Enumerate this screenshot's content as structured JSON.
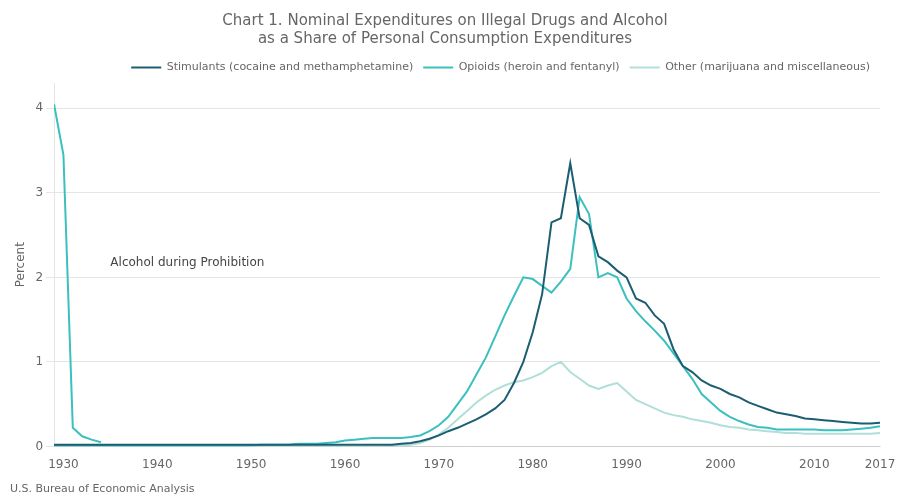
{
  "chart_data": {
    "type": "line",
    "title": "Chart 1. Nominal Expenditures on Illegal Drugs and Alcohol\nas a Share of Personal Consumption Expenditures",
    "ylabel": "Percent",
    "source": "U.S. Bureau of Economic Analysis",
    "xlim": [
      1929,
      2017
    ],
    "xticks": [
      1930,
      1940,
      1950,
      1960,
      1970,
      1980,
      1990,
      2000,
      2010,
      2017
    ],
    "ylim": [
      0,
      4.3
    ],
    "yticks": [
      0,
      1,
      2,
      3,
      4
    ],
    "grid": "y",
    "legend": "upper right",
    "annotations": [
      {
        "text": "Alcohol during Prohibition",
        "x": 1935,
        "y": 2.1
      }
    ],
    "series": [
      {
        "name": "Stimulants (cocaine and methamphetamine)",
        "color": "#1B5E72",
        "x": [
          1929,
          1930,
          1931,
          1932,
          1933,
          1934,
          1935,
          1936,
          1937,
          1938,
          1939,
          1940,
          1941,
          1942,
          1943,
          1944,
          1945,
          1946,
          1947,
          1948,
          1949,
          1950,
          1951,
          1952,
          1953,
          1954,
          1955,
          1956,
          1957,
          1958,
          1959,
          1960,
          1961,
          1962,
          1963,
          1964,
          1965,
          1966,
          1967,
          1968,
          1969,
          1970,
          1971,
          1972,
          1973,
          1974,
          1975,
          1976,
          1977,
          1978,
          1979,
          1980,
          1981,
          1982,
          1983,
          1984,
          1985,
          1986,
          1987,
          1988,
          1989,
          1990,
          1991,
          1992,
          1993,
          1994,
          1995,
          1996,
          1997,
          1998,
          1999,
          2000,
          2001,
          2002,
          2003,
          2004,
          2005,
          2006,
          2007,
          2008,
          2009,
          2010,
          2011,
          2012,
          2013,
          2014,
          2015,
          2016,
          2017
        ],
        "values": [
          0.02,
          0.02,
          0.02,
          0.02,
          0.02,
          0.02,
          0.02,
          0.02,
          0.02,
          0.02,
          0.02,
          0.02,
          0.02,
          0.02,
          0.02,
          0.02,
          0.02,
          0.02,
          0.02,
          0.02,
          0.02,
          0.02,
          0.02,
          0.02,
          0.02,
          0.02,
          0.02,
          0.02,
          0.02,
          0.02,
          0.02,
          0.02,
          0.02,
          0.02,
          0.02,
          0.02,
          0.02,
          0.03,
          0.04,
          0.06,
          0.09,
          0.13,
          0.18,
          0.22,
          0.27,
          0.32,
          0.38,
          0.45,
          0.55,
          0.75,
          1.0,
          1.35,
          1.8,
          2.65,
          2.7,
          3.35,
          2.7,
          2.62,
          2.25,
          2.18,
          2.08,
          2.0,
          1.75,
          1.7,
          1.55,
          1.45,
          1.15,
          0.95,
          0.88,
          0.78,
          0.72,
          0.68,
          0.62,
          0.58,
          0.52,
          0.48,
          0.44,
          0.4,
          0.38,
          0.36,
          0.33,
          0.32,
          0.31,
          0.3,
          0.29,
          0.28,
          0.27,
          0.27,
          0.28
        ]
      },
      {
        "name": "Opioids (heroin and fentanyl)",
        "color": "#3BBFBF",
        "x": [
          1929,
          1930,
          1931,
          1932,
          1933,
          1934,
          1935,
          1936,
          1937,
          1938,
          1939,
          1940,
          1941,
          1942,
          1943,
          1944,
          1945,
          1946,
          1947,
          1948,
          1949,
          1950,
          1951,
          1952,
          1953,
          1954,
          1955,
          1956,
          1957,
          1958,
          1959,
          1960,
          1961,
          1962,
          1963,
          1964,
          1965,
          1966,
          1967,
          1968,
          1969,
          1970,
          1971,
          1972,
          1973,
          1974,
          1975,
          1976,
          1977,
          1978,
          1979,
          1980,
          1981,
          1982,
          1983,
          1984,
          1985,
          1986,
          1987,
          1988,
          1989,
          1990,
          1991,
          1992,
          1993,
          1994,
          1995,
          1996,
          1997,
          1998,
          1999,
          2000,
          2001,
          2002,
          2003,
          2004,
          2005,
          2006,
          2007,
          2008,
          2009,
          2010,
          2011,
          2012,
          2013,
          2014,
          2015,
          2016,
          2017
        ],
        "values": [
          0.01,
          0.01,
          0.01,
          0.01,
          0.01,
          0.01,
          0.01,
          0.01,
          0.01,
          0.01,
          0.01,
          0.01,
          0.01,
          0.01,
          0.01,
          0.01,
          0.01,
          0.01,
          0.01,
          0.01,
          0.01,
          0.01,
          0.02,
          0.02,
          0.02,
          0.02,
          0.03,
          0.03,
          0.03,
          0.04,
          0.05,
          0.07,
          0.08,
          0.09,
          0.1,
          0.1,
          0.1,
          0.1,
          0.11,
          0.13,
          0.18,
          0.25,
          0.35,
          0.5,
          0.65,
          0.85,
          1.05,
          1.3,
          1.55,
          1.78,
          2.0,
          1.98,
          1.9,
          1.82,
          1.95,
          2.1,
          2.95,
          2.75,
          2.0,
          2.05,
          2.0,
          1.75,
          1.6,
          1.48,
          1.37,
          1.25,
          1.1,
          0.95,
          0.8,
          0.62,
          0.52,
          0.42,
          0.35,
          0.3,
          0.26,
          0.23,
          0.22,
          0.2,
          0.2,
          0.2,
          0.2,
          0.2,
          0.19,
          0.19,
          0.19,
          0.2,
          0.21,
          0.22,
          0.24
        ]
      },
      {
        "name": "Other (marijuana and miscellaneous)",
        "color": "#B0DED8",
        "x": [
          1929,
          1930,
          1931,
          1932,
          1933,
          1934,
          1935,
          1936,
          1937,
          1938,
          1939,
          1940,
          1941,
          1942,
          1943,
          1944,
          1945,
          1946,
          1947,
          1948,
          1949,
          1950,
          1951,
          1952,
          1953,
          1954,
          1955,
          1956,
          1957,
          1958,
          1959,
          1960,
          1961,
          1962,
          1963,
          1964,
          1965,
          1966,
          1967,
          1968,
          1969,
          1970,
          1971,
          1972,
          1973,
          1974,
          1975,
          1976,
          1977,
          1978,
          1979,
          1980,
          1981,
          1982,
          1983,
          1984,
          1985,
          1986,
          1987,
          1988,
          1989,
          1990,
          1991,
          1992,
          1993,
          1994,
          1995,
          1996,
          1997,
          1998,
          1999,
          2000,
          2001,
          2002,
          2003,
          2004,
          2005,
          2006,
          2007,
          2008,
          2009,
          2010,
          2011,
          2012,
          2013,
          2014,
          2015,
          2016,
          2017
        ],
        "values": [
          0.0,
          0.0,
          0.0,
          0.0,
          0.0,
          0.0,
          0.0,
          0.0,
          0.0,
          0.0,
          0.0,
          0.0,
          0.0,
          0.0,
          0.0,
          0.0,
          0.0,
          0.0,
          0.0,
          0.0,
          0.0,
          0.0,
          0.0,
          0.0,
          0.0,
          0.0,
          0.0,
          0.0,
          0.0,
          0.0,
          0.0,
          0.0,
          0.0,
          0.0,
          0.0,
          0.0,
          0.01,
          0.01,
          0.02,
          0.04,
          0.08,
          0.14,
          0.22,
          0.32,
          0.42,
          0.52,
          0.6,
          0.67,
          0.72,
          0.76,
          0.78,
          0.82,
          0.87,
          0.95,
          1.0,
          0.88,
          0.8,
          0.72,
          0.68,
          0.72,
          0.75,
          0.65,
          0.55,
          0.5,
          0.45,
          0.4,
          0.37,
          0.35,
          0.32,
          0.3,
          0.28,
          0.25,
          0.23,
          0.22,
          0.2,
          0.19,
          0.18,
          0.17,
          0.16,
          0.16,
          0.15,
          0.15,
          0.15,
          0.15,
          0.15,
          0.15,
          0.15,
          0.15,
          0.16
        ]
      },
      {
        "color": "#3BBFBF",
        "x": [
          1929,
          1930,
          1931,
          1932,
          1933,
          1934
        ],
        "values": [
          4.05,
          3.45,
          0.22,
          0.12,
          0.08,
          0.05
        ]
      }
    ]
  }
}
